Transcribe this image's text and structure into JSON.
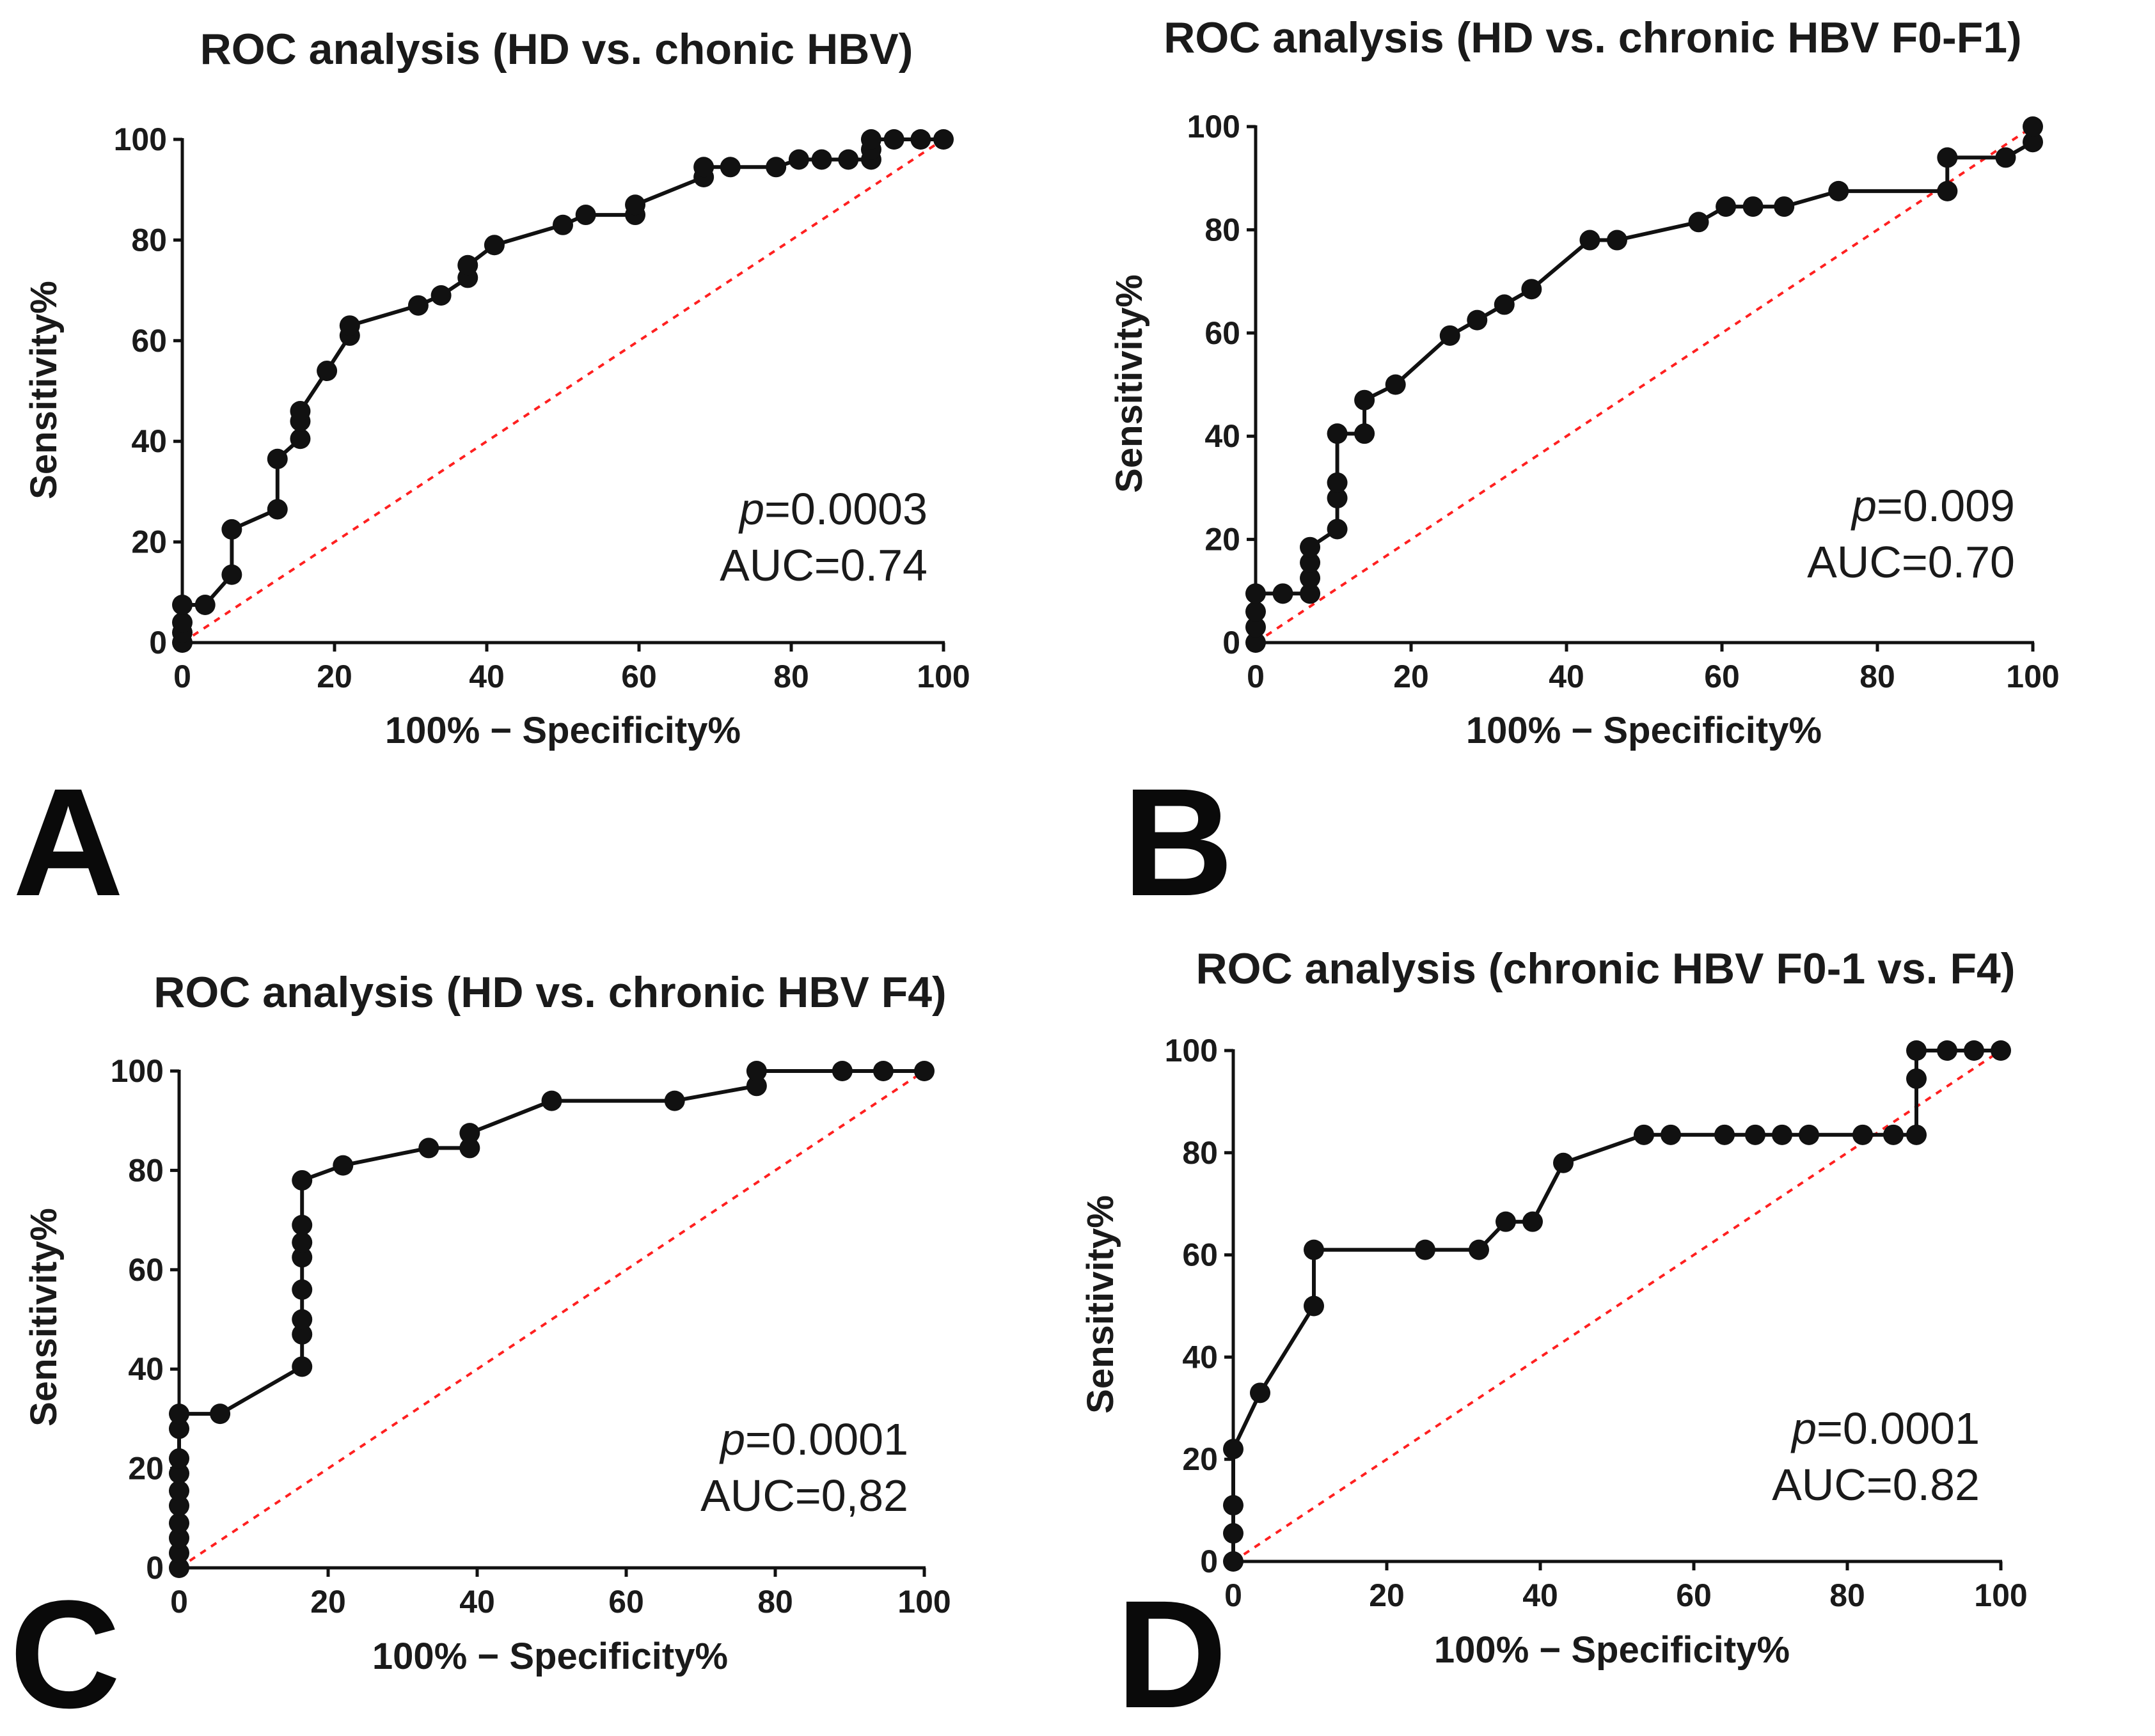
{
  "figure": {
    "colors": {
      "curve": "#111111",
      "reference": "#ff2020",
      "points": "#111111"
    },
    "chart_data": [
      {
        "id": "A",
        "panel_label": "A",
        "type": "line",
        "title": "ROC analysis (HD vs. chonic HBV)",
        "xlabel": "100% − Specificity%",
        "ylabel": "Sensitivity%",
        "xlim": [
          0,
          100
        ],
        "ylim": [
          0,
          100
        ],
        "xticks": [
          "0",
          "20",
          "40",
          "60",
          "80",
          "100"
        ],
        "yticks": [
          "0",
          "20",
          "40",
          "60",
          "80",
          "100"
        ],
        "reference_line": [
          [
            0,
            0
          ],
          [
            100,
            100
          ]
        ],
        "p_prefix": "p",
        "p_value": "=0.0003",
        "auc_label": "AUC=0.74",
        "series": [
          {
            "name": "ROC curve",
            "points": [
              [
                0,
                0
              ],
              [
                0,
                2
              ],
              [
                0,
                4
              ],
              [
                0,
                7.5
              ],
              [
                3,
                7.5
              ],
              [
                6.5,
                13.5
              ],
              [
                6.5,
                22.5
              ],
              [
                12.5,
                26.5
              ],
              [
                12.5,
                36.5
              ],
              [
                15.5,
                40.5
              ],
              [
                15.5,
                44
              ],
              [
                15.5,
                46
              ],
              [
                19,
                54
              ],
              [
                22,
                61
              ],
              [
                22,
                63
              ],
              [
                31,
                67
              ],
              [
                34,
                69
              ],
              [
                37.5,
                72.5
              ],
              [
                37.5,
                75
              ],
              [
                41,
                79
              ],
              [
                50,
                83
              ],
              [
                53,
                85
              ],
              [
                59.5,
                85
              ],
              [
                59.5,
                87
              ],
              [
                68.5,
                92.5
              ],
              [
                68.5,
                94.5
              ],
              [
                72,
                94.5
              ],
              [
                78,
                94.5
              ],
              [
                81,
                96
              ],
              [
                84,
                96
              ],
              [
                87.5,
                96
              ],
              [
                90.5,
                96
              ],
              [
                90.5,
                98
              ],
              [
                90.5,
                100
              ],
              [
                93.5,
                100
              ],
              [
                97,
                100
              ],
              [
                100,
                100
              ]
            ]
          }
        ]
      },
      {
        "id": "B",
        "panel_label": "B",
        "type": "line",
        "title": "ROC analysis (HD vs.  chronic HBV F0-F1)",
        "xlabel": "100% − Specificity%",
        "ylabel": "Sensitivity%",
        "xlim": [
          0,
          100
        ],
        "ylim": [
          0,
          100
        ],
        "xticks": [
          "0",
          "20",
          "40",
          "60",
          "80",
          "100"
        ],
        "yticks": [
          "0",
          "20",
          "40",
          "60",
          "80",
          "100"
        ],
        "reference_line": [
          [
            0,
            0
          ],
          [
            100,
            100
          ]
        ],
        "p_prefix": "p",
        "p_value": "=0.009",
        "auc_label": "AUC=0.70",
        "series": [
          {
            "name": "ROC curve",
            "points": [
              [
                0,
                0
              ],
              [
                0,
                3
              ],
              [
                0,
                6
              ],
              [
                0,
                9.5
              ],
              [
                3.5,
                9.5
              ],
              [
                7,
                9.5
              ],
              [
                7,
                12.5
              ],
              [
                7,
                15.5
              ],
              [
                7,
                18.5
              ],
              [
                10.5,
                22
              ],
              [
                10.5,
                28
              ],
              [
                10.5,
                31
              ],
              [
                10.5,
                40.5
              ],
              [
                14,
                40.5
              ],
              [
                14,
                47
              ],
              [
                18,
                50
              ],
              [
                25,
                59.5
              ],
              [
                28.5,
                62.5
              ],
              [
                32,
                65.5
              ],
              [
                35.5,
                68.5
              ],
              [
                43,
                78
              ],
              [
                46.5,
                78
              ],
              [
                57,
                81.5
              ],
              [
                60.5,
                84.5
              ],
              [
                64,
                84.5
              ],
              [
                68,
                84.5
              ],
              [
                75,
                87.5
              ],
              [
                89,
                87.5
              ],
              [
                89,
                94
              ],
              [
                96.5,
                94
              ],
              [
                100,
                97
              ],
              [
                100,
                100
              ]
            ]
          }
        ]
      },
      {
        "id": "C",
        "panel_label": "C",
        "type": "line",
        "title": "ROC analysis  (HD vs. chronic HBV  F4)",
        "xlabel": "100% − Specificity%",
        "ylabel": "Sensitivity%",
        "xlim": [
          0,
          100
        ],
        "ylim": [
          0,
          100
        ],
        "xticks": [
          "0",
          "20",
          "40",
          "60",
          "80",
          "100"
        ],
        "yticks": [
          "0",
          "20",
          "40",
          "60",
          "80",
          "100"
        ],
        "reference_line": [
          [
            0,
            0
          ],
          [
            100,
            100
          ]
        ],
        "p_prefix": "p",
        "p_value": "=0.0001",
        "auc_label": "AUC=0,82",
        "series": [
          {
            "name": "ROC curve",
            "points": [
              [
                0,
                0
              ],
              [
                0,
                3
              ],
              [
                0,
                6
              ],
              [
                0,
                9
              ],
              [
                0,
                12.5
              ],
              [
                0,
                15.5
              ],
              [
                0,
                19
              ],
              [
                0,
                22
              ],
              [
                0,
                28
              ],
              [
                0,
                31
              ],
              [
                5.5,
                31
              ],
              [
                16.5,
                40.5
              ],
              [
                16.5,
                47
              ],
              [
                16.5,
                50
              ],
              [
                16.5,
                56
              ],
              [
                16.5,
                62.5
              ],
              [
                16.5,
                65.5
              ],
              [
                16.5,
                69
              ],
              [
                16.5,
                78
              ],
              [
                22,
                81
              ],
              [
                33.5,
                84.5
              ],
              [
                39,
                84.5
              ],
              [
                39,
                87.5
              ],
              [
                50,
                94
              ],
              [
                66.5,
                94
              ],
              [
                77.5,
                97
              ],
              [
                77.5,
                100
              ],
              [
                89,
                100
              ],
              [
                94.5,
                100
              ],
              [
                100,
                100
              ]
            ]
          }
        ]
      },
      {
        "id": "D",
        "panel_label": "D",
        "type": "line",
        "title": "ROC analysis (chronic HBV F0-1 vs. F4)",
        "xlabel": "100% − Specificity%",
        "ylabel": "Sensitivity%",
        "xlim": [
          0,
          100
        ],
        "ylim": [
          0,
          100
        ],
        "xticks": [
          "0",
          "20",
          "40",
          "60",
          "80",
          "100"
        ],
        "yticks": [
          "0",
          "20",
          "40",
          "60",
          "80",
          "100"
        ],
        "reference_line": [
          [
            0,
            0
          ],
          [
            100,
            100
          ]
        ],
        "p_prefix": "p",
        "p_value": "=0.0001",
        "auc_label": "AUC=0.82",
        "series": [
          {
            "name": "ROC curve",
            "points": [
              [
                0,
                0
              ],
              [
                0,
                5.5
              ],
              [
                0,
                11
              ],
              [
                0,
                22
              ],
              [
                3.5,
                33
              ],
              [
                10.5,
                50
              ],
              [
                10.5,
                61
              ],
              [
                25,
                61
              ],
              [
                32,
                61
              ],
              [
                35.5,
                66.5
              ],
              [
                39,
                66.5
              ],
              [
                43,
                78
              ],
              [
                53.5,
                83.5
              ],
              [
                57,
                83.5
              ],
              [
                64,
                83.5
              ],
              [
                68,
                83.5
              ],
              [
                71.5,
                83.5
              ],
              [
                75,
                83.5
              ],
              [
                82,
                83.5
              ],
              [
                86,
                83.5
              ],
              [
                89,
                83.5
              ],
              [
                89,
                94.5
              ],
              [
                89,
                100
              ],
              [
                93,
                100
              ],
              [
                96.5,
                100
              ],
              [
                100,
                100
              ]
            ]
          }
        ]
      }
    ]
  }
}
